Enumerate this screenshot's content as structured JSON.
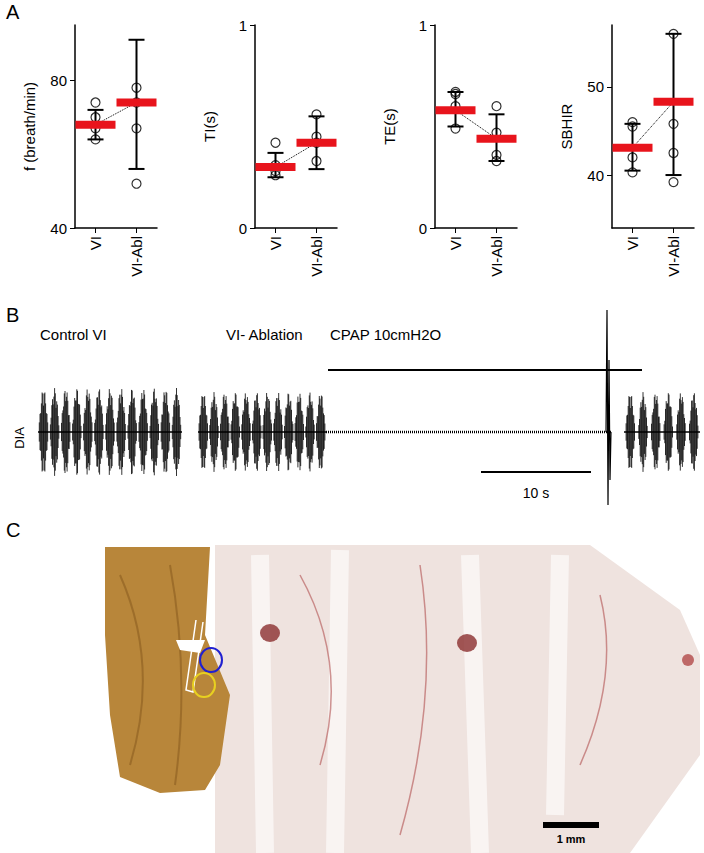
{
  "chart_data": [
    {
      "type": "scatter",
      "ylabel": "f (breath/min)",
      "categories": [
        "VI",
        "VI-Abl"
      ],
      "marker": "circle",
      "points": [
        [
          74,
          70,
          67,
          64
        ],
        [
          78,
          74,
          67,
          52
        ]
      ],
      "values": [
        68,
        74
      ],
      "error_low": [
        64,
        56
      ],
      "error_high": [
        72,
        91
      ],
      "color": "#e8141c",
      "ylim": [
        40,
        95
      ],
      "yticks": [
        40,
        80
      ]
    },
    {
      "type": "scatter",
      "ylabel": "TI(s)",
      "categories": [
        "VI",
        "VI-Abl"
      ],
      "marker": "circle",
      "points": [
        [
          0.42,
          0.31,
          0.28,
          0.26
        ],
        [
          0.56,
          0.45,
          0.42,
          0.33
        ]
      ],
      "values": [
        0.3,
        0.42
      ],
      "error_low": [
        0.25,
        0.29
      ],
      "error_high": [
        0.37,
        0.55
      ],
      "color": "#e8141c",
      "ylim": [
        0,
        1
      ],
      "yticks": [
        0,
        1
      ]
    },
    {
      "type": "scatter",
      "ylabel": "TE(s)",
      "categories": [
        "VI",
        "VI-Abl"
      ],
      "marker": "circle",
      "points": [
        [
          0.67,
          0.66,
          0.6,
          0.49
        ],
        [
          0.6,
          0.47,
          0.36,
          0.33
        ]
      ],
      "values": [
        0.58,
        0.44
      ],
      "error_low": [
        0.5,
        0.33
      ],
      "error_high": [
        0.67,
        0.56
      ],
      "color": "#e8141c",
      "ylim": [
        0,
        1
      ],
      "yticks": [
        0,
        1
      ]
    },
    {
      "type": "scatter",
      "ylabel": "SBHIR",
      "categories": [
        "VI",
        "VI-Abl"
      ],
      "marker": "circle",
      "points": [
        [
          46,
          45.5,
          42,
          40.3
        ],
        [
          56,
          45.8,
          42.5,
          39.2
        ]
      ],
      "values": [
        43.1,
        48.3
      ],
      "error_low": [
        40.5,
        40
      ],
      "error_high": [
        45.8,
        56
      ],
      "color": "#e8141c",
      "ylim": [
        34,
        57
      ],
      "yticks": [
        40,
        50
      ]
    }
  ],
  "panel_labels": [
    "A",
    "B",
    "C"
  ],
  "panel_b": {
    "trace_label": "DIA",
    "segments": [
      "Control VI",
      "VI- Ablation"
    ],
    "stimulus": "CPAP 10cmH2O",
    "scale_bar": "10 s"
  },
  "panel_c": {
    "scale_bar": "1 mm"
  }
}
